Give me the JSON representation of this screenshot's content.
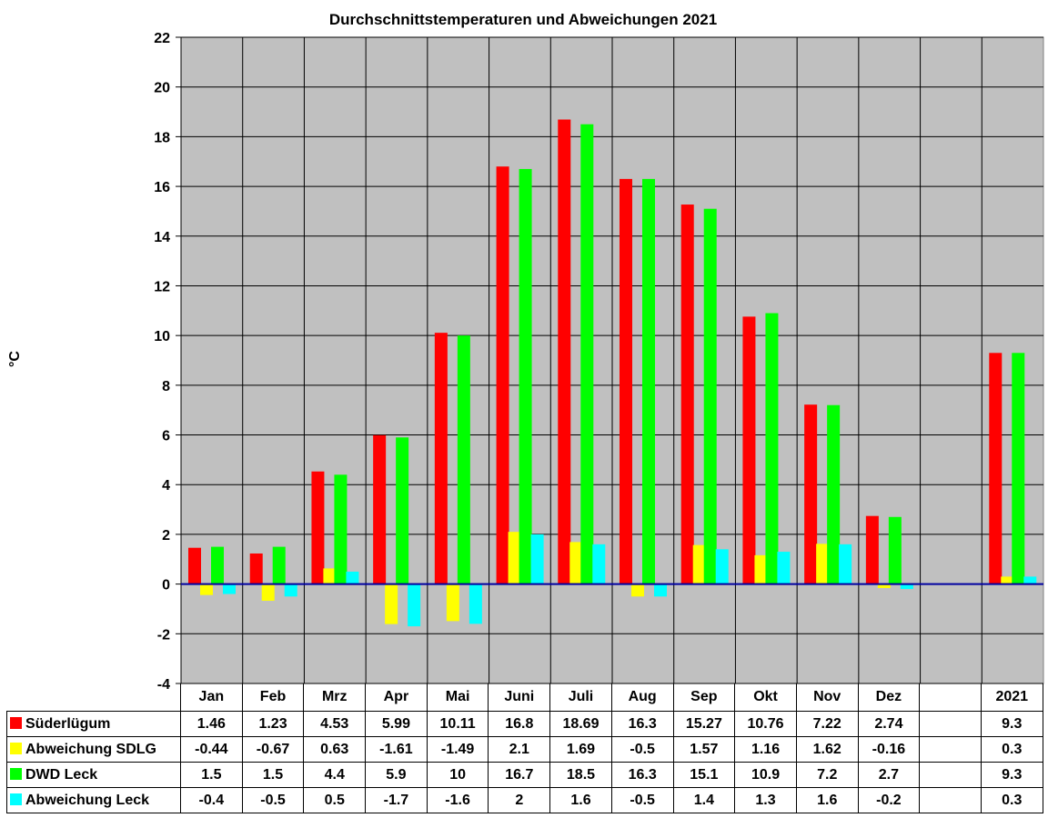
{
  "chart_data": {
    "type": "bar",
    "title": "Durchschnittstemperaturen und Abweichungen 2021",
    "ylabel": "°C",
    "xlabel": "",
    "ylim": [
      -4,
      22
    ],
    "yticks": [
      "22",
      "20",
      "18",
      "16",
      "14",
      "12",
      "10",
      "8",
      "6",
      "4",
      "2",
      "0",
      "-2",
      "-4"
    ],
    "grid": true,
    "legend": "data-table-bottom",
    "plot_background": "#C0C0C0",
    "zero_line_color": "#0000A0",
    "categories": [
      "Jan",
      "Feb",
      "Mrz",
      "Apr",
      "Mai",
      "Juni",
      "Juli",
      "Aug",
      "Sep",
      "Okt",
      "Nov",
      "Dez",
      "",
      "2021"
    ],
    "series": [
      {
        "name": "Süderlügum",
        "color": "#FF0000",
        "values": [
          1.46,
          1.23,
          4.53,
          5.99,
          10.11,
          16.8,
          18.69,
          16.3,
          15.27,
          10.76,
          7.22,
          2.74,
          null,
          9.3
        ],
        "labels": [
          "1.46",
          "1.23",
          "4.53",
          "5.99",
          "10.11",
          "16.8",
          "18.69",
          "16.3",
          "15.27",
          "10.76",
          "7.22",
          "2.74",
          "",
          "9.3"
        ]
      },
      {
        "name": "Abweichung SDLG",
        "color": "#FFFF00",
        "values": [
          -0.44,
          -0.67,
          0.63,
          -1.61,
          -1.49,
          2.1,
          1.69,
          -0.5,
          1.57,
          1.16,
          1.62,
          -0.16,
          null,
          0.3
        ],
        "labels": [
          "-0.44",
          "-0.67",
          "0.63",
          "-1.61",
          "-1.49",
          "2.1",
          "1.69",
          "-0.5",
          "1.57",
          "1.16",
          "1.62",
          "-0.16",
          "",
          "0.3"
        ]
      },
      {
        "name": "DWD Leck",
        "color": "#00FF00",
        "values": [
          1.5,
          1.5,
          4.4,
          5.9,
          10,
          16.7,
          18.5,
          16.3,
          15.1,
          10.9,
          7.2,
          2.7,
          null,
          9.3
        ],
        "labels": [
          "1.5",
          "1.5",
          "4.4",
          "5.9",
          "10",
          "16.7",
          "18.5",
          "16.3",
          "15.1",
          "10.9",
          "7.2",
          "2.7",
          "",
          "9.3"
        ]
      },
      {
        "name": "Abweichung Leck",
        "color": "#00FFFF",
        "values": [
          -0.4,
          -0.5,
          0.5,
          -1.7,
          -1.6,
          2,
          1.6,
          -0.5,
          1.4,
          1.3,
          1.6,
          -0.2,
          null,
          0.3
        ],
        "labels": [
          "-0.4",
          "-0.5",
          "0.5",
          "-1.7",
          "-1.6",
          "2",
          "1.6",
          "-0.5",
          "1.4",
          "1.3",
          "1.6",
          "-0.2",
          "",
          "0.3"
        ]
      }
    ]
  }
}
